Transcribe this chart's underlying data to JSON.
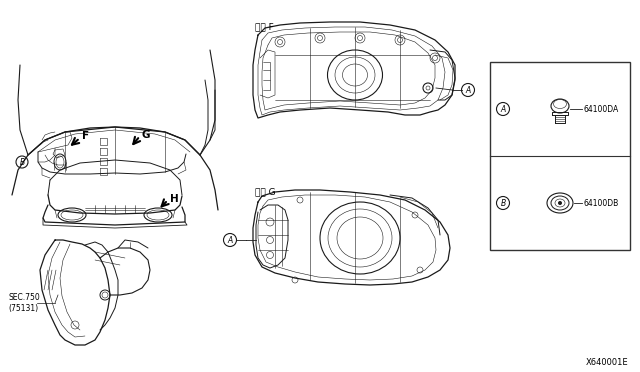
{
  "background_color": "#ffffff",
  "fig_width": 6.4,
  "fig_height": 3.72,
  "dpi": 100,
  "watermark": "X640001E",
  "part_A": "64100DA",
  "part_B": "64100DB",
  "sec_label": "SEC.750\n(75131)",
  "view_F_label": "矢視 F",
  "view_G_label": "矢視 G",
  "line_color": "#1a1a1a",
  "bg_color": "#ffffff",
  "text_color": "#000000",
  "box_line_color": "#555555",
  "lw_main": 0.7,
  "lw_thin": 0.4
}
